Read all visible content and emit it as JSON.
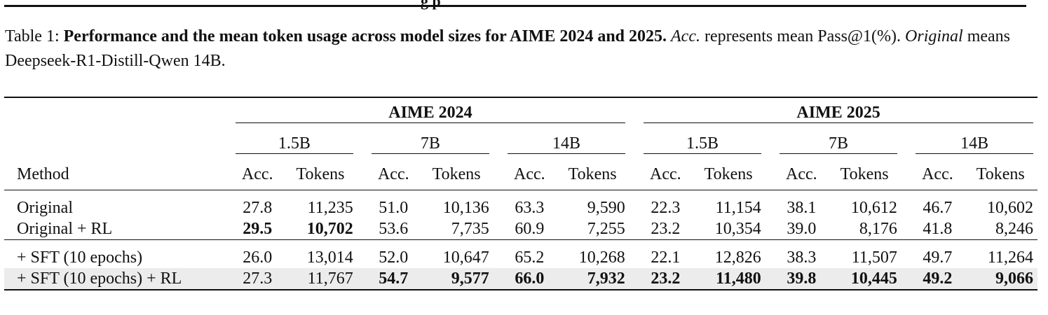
{
  "header_fragment": "g  p",
  "caption": {
    "prefix": "Table 1: ",
    "bold": "Performance and the mean token usage across model sizes for AIME 2024 and 2025.",
    "acc_italic": "Acc.",
    "acc_rest": " represents mean Pass@1(%). ",
    "orig_italic": "Original",
    "orig_rest": " means Deepseek-R1-Distill-Qwen 14B."
  },
  "table": {
    "group1": "AIME 2024",
    "group2": "AIME 2025",
    "sizes": [
      "1.5B",
      "7B",
      "14B",
      "1.5B",
      "7B",
      "14B"
    ],
    "method_header": "Method",
    "acc_header": "Acc.",
    "tokens_header": "Tokens",
    "rows": [
      {
        "method": "Original",
        "cells": [
          "27.8",
          "11,235",
          "51.0",
          "10,136",
          "63.3",
          "9,590",
          "22.3",
          "11,154",
          "38.1",
          "10,612",
          "46.7",
          "10,602"
        ]
      },
      {
        "method": "Original + RL",
        "cells": [
          "29.5",
          "10,702",
          "53.6",
          "7,735",
          "60.9",
          "7,255",
          "23.2",
          "10,354",
          "39.0",
          "8,176",
          "41.8",
          "8,246"
        ]
      },
      {
        "method": "+ SFT (10 epochs)",
        "cells": [
          "26.0",
          "13,014",
          "52.0",
          "10,647",
          "65.2",
          "10,268",
          "22.1",
          "12,826",
          "38.3",
          "11,507",
          "49.7",
          "11,264"
        ]
      },
      {
        "method": "+ SFT (10 epochs) + RL",
        "cells": [
          "27.3",
          "11,767",
          "54.7",
          "9,577",
          "66.0",
          "7,932",
          "23.2",
          "11,480",
          "39.8",
          "10,445",
          "49.2",
          "9,066"
        ]
      }
    ],
    "bold_cells": [
      [
        1,
        0
      ],
      [
        1,
        1
      ],
      [
        3,
        2
      ],
      [
        3,
        3
      ],
      [
        3,
        4
      ],
      [
        3,
        5
      ],
      [
        3,
        6
      ],
      [
        3,
        7
      ],
      [
        3,
        8
      ],
      [
        3,
        9
      ],
      [
        3,
        10
      ],
      [
        3,
        11
      ]
    ]
  }
}
